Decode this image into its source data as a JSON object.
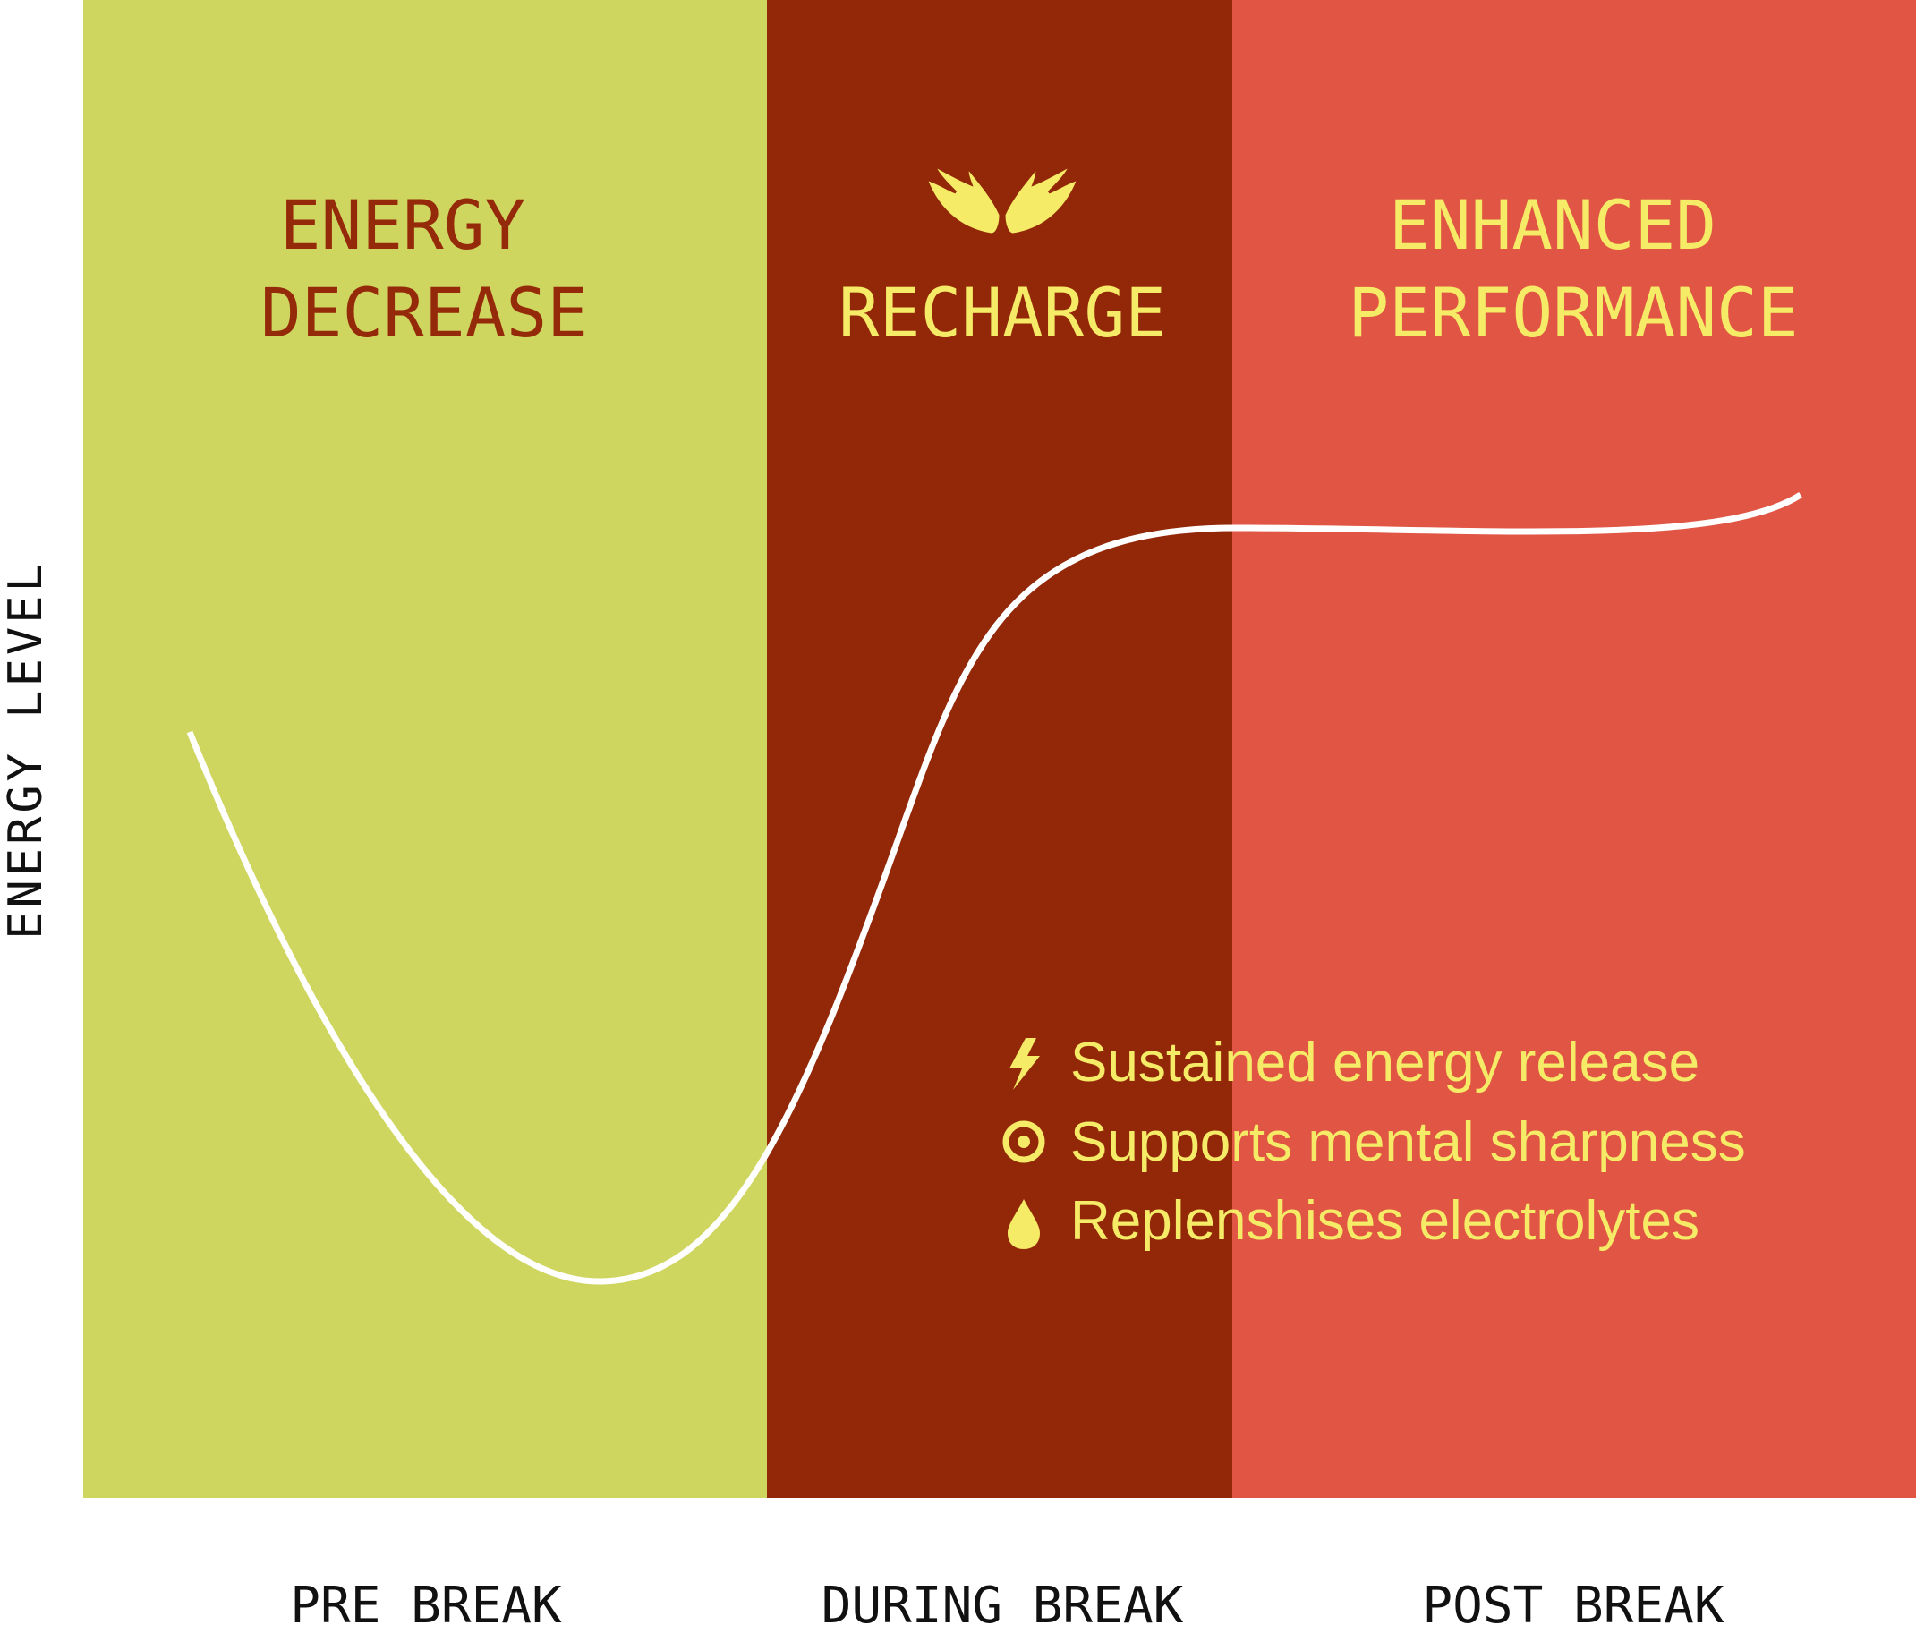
{
  "y_axis_label": "ENERGY LEVEL",
  "phases": [
    {
      "title_line1": "ENERGY",
      "title_line2": "DECREASE",
      "x_label": "PRE BREAK",
      "bg_color": "#CFD65F",
      "title_color": "#942A0A"
    },
    {
      "title_line1": "",
      "title_line2": "RECHARGE",
      "x_label": "DURING BREAK",
      "bg_color": "#922808",
      "title_color": "#F5EB66",
      "icon": "wings-icon"
    },
    {
      "title_line1": "ENHANCED",
      "title_line2": "PERFORMANCE",
      "x_label": "POST BREAK",
      "bg_color": "#E05543",
      "title_color": "#F5EB66"
    }
  ],
  "benefits": [
    {
      "icon": "lightning-icon",
      "text": "Sustained energy release"
    },
    {
      "icon": "target-icon",
      "text": "Supports mental sharpness"
    },
    {
      "icon": "droplet-icon",
      "text": "Replenshises electrolytes"
    }
  ],
  "colors": {
    "curve": "#FFFFFF",
    "accent_yellow": "#F5EB66",
    "dark_red": "#942A0A",
    "axis_text": "#111111"
  }
}
